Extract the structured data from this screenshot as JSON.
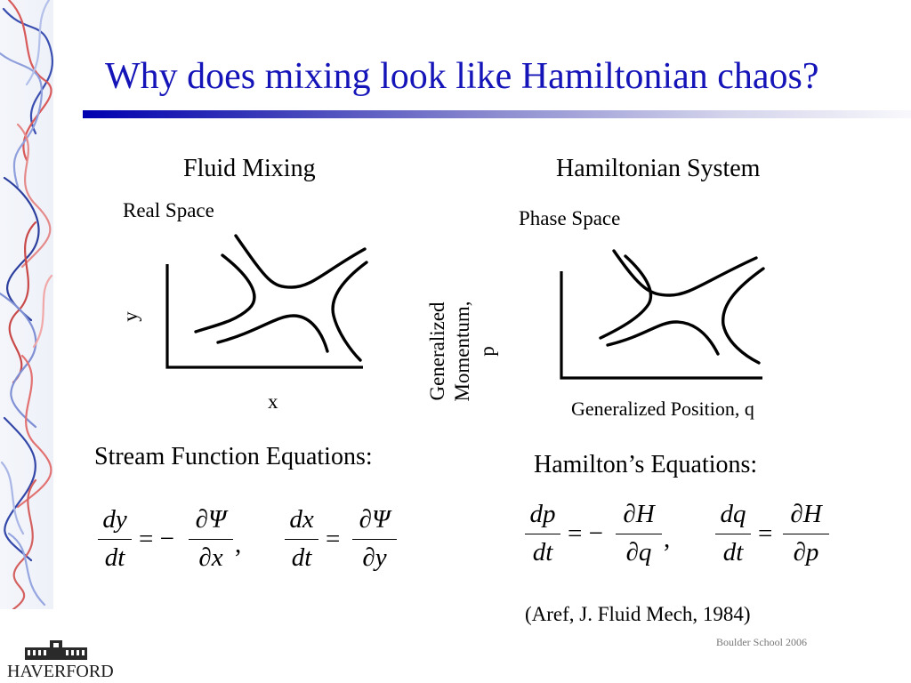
{
  "slide": {
    "title": "Why does mixing look like Hamiltonian chaos?",
    "footer": "Boulder School 2006",
    "citation": "(Aref, J. Fluid Mech, 1984)"
  },
  "left_panel": {
    "heading": "Fluid Mixing",
    "space_label": "Real Space",
    "y_axis_label": "y",
    "x_axis_label": "x",
    "equations_heading": "Stream Function Equations:",
    "eq1": {
      "num_left": "dy",
      "den_left": "dt",
      "sign": "= −",
      "num_right": "∂Ψ",
      "den_right": "∂x",
      "sep": ","
    },
    "eq2": {
      "num_left": "dx",
      "den_left": "dt",
      "sign": "=",
      "num_right": "∂Ψ",
      "den_right": "∂y"
    }
  },
  "right_panel": {
    "heading": "Hamiltonian System",
    "space_label": "Phase Space",
    "y_axis_label_line1": "Generalized",
    "y_axis_label_line2": "Momentum,",
    "y_axis_label_line3": "p",
    "x_axis_label": "Generalized Position, q",
    "equations_heading": "Hamilton’s Equations:",
    "eq1": {
      "num_left": "dp",
      "den_left": "dt",
      "sign": "= −",
      "num_right": "∂H",
      "den_right": "∂q",
      "sep": ","
    },
    "eq2": {
      "num_left": "dq",
      "den_left": "dt",
      "sign": "=",
      "num_right": "∂H",
      "den_right": "∂p"
    }
  },
  "logo": {
    "text": "HAVERFORD",
    "icon": "haverford-building-icon"
  },
  "colors": {
    "title": "#1414b8",
    "rule_start": "#0000b0"
  }
}
